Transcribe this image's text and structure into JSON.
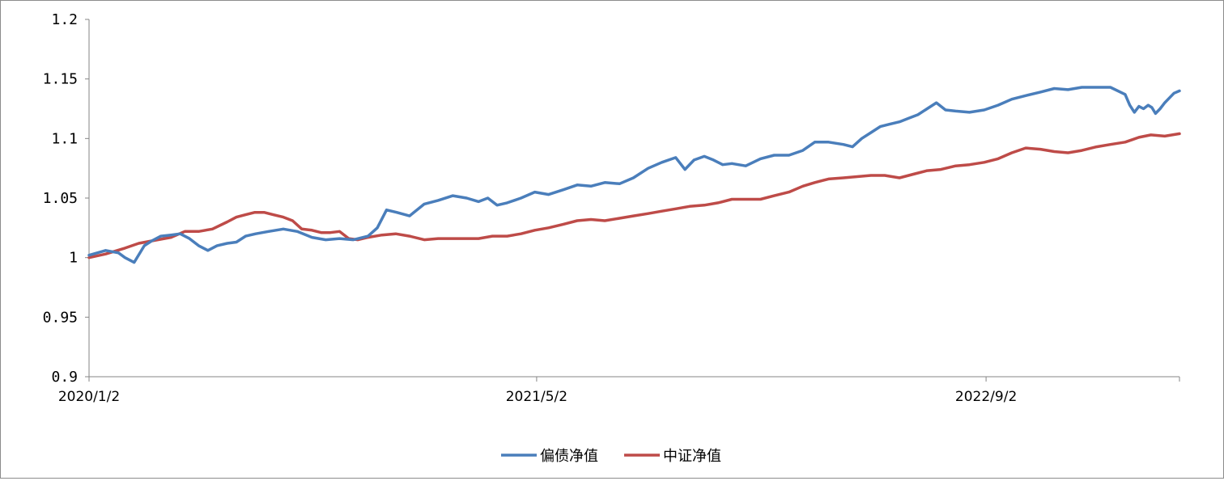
{
  "chart_data": {
    "type": "line",
    "title": "",
    "xlabel": "",
    "ylabel": "",
    "ylim": [
      0.9,
      1.2
    ],
    "yticks": [
      "1.2",
      "1.15",
      "1.1",
      "1.05",
      "1",
      "0.95",
      "0.9"
    ],
    "xticks": [
      "2020/1/2",
      "2021/5/2",
      "2022/9/2"
    ],
    "x_start": "2020/1/2",
    "x_end": "2023/3/31",
    "legend_position": "bottom-center",
    "grid": false,
    "series": [
      {
        "name": "偏债净值",
        "color": "#4a7ebb",
        "points": [
          [
            "2020/1/2",
            1.002
          ],
          [
            "2020/1/20",
            1.006
          ],
          [
            "2020/2/3",
            1.004
          ],
          [
            "2020/2/10",
            1.0
          ],
          [
            "2020/2/20",
            0.996
          ],
          [
            "2020/3/2",
            1.01
          ],
          [
            "2020/3/10",
            1.014
          ],
          [
            "2020/3/20",
            1.018
          ],
          [
            "2020/3/31",
            1.019
          ],
          [
            "2020/4/10",
            1.02
          ],
          [
            "2020/4/20",
            1.016
          ],
          [
            "2020/4/30",
            1.01
          ],
          [
            "2020/5/10",
            1.006
          ],
          [
            "2020/5/20",
            1.01
          ],
          [
            "2020/5/31",
            1.012
          ],
          [
            "2020/6/10",
            1.013
          ],
          [
            "2020/6/20",
            1.018
          ],
          [
            "2020/7/1",
            1.02
          ],
          [
            "2020/7/15",
            1.022
          ],
          [
            "2020/7/31",
            1.024
          ],
          [
            "2020/8/15",
            1.022
          ],
          [
            "2020/8/31",
            1.017
          ],
          [
            "2020/9/15",
            1.015
          ],
          [
            "2020/9/30",
            1.016
          ],
          [
            "2020/10/15",
            1.015
          ],
          [
            "2020/10/31",
            1.018
          ],
          [
            "2020/11/10",
            1.025
          ],
          [
            "2020/11/20",
            1.04
          ],
          [
            "2020/12/1",
            1.038
          ],
          [
            "2020/12/15",
            1.035
          ],
          [
            "2020/12/31",
            1.045
          ],
          [
            "2021/1/15",
            1.048
          ],
          [
            "2021/1/31",
            1.052
          ],
          [
            "2021/2/15",
            1.05
          ],
          [
            "2021/2/28",
            1.047
          ],
          [
            "2021/3/10",
            1.05
          ],
          [
            "2021/3/20",
            1.044
          ],
          [
            "2021/3/31",
            1.046
          ],
          [
            "2021/4/15",
            1.05
          ],
          [
            "2021/4/30",
            1.055
          ],
          [
            "2021/5/15",
            1.053
          ],
          [
            "2021/5/31",
            1.057
          ],
          [
            "2021/6/15",
            1.061
          ],
          [
            "2021/6/30",
            1.06
          ],
          [
            "2021/7/15",
            1.063
          ],
          [
            "2021/7/31",
            1.062
          ],
          [
            "2021/8/15",
            1.067
          ],
          [
            "2021/8/31",
            1.075
          ],
          [
            "2021/9/15",
            1.08
          ],
          [
            "2021/9/30",
            1.084
          ],
          [
            "2021/10/10",
            1.074
          ],
          [
            "2021/10/20",
            1.082
          ],
          [
            "2021/10/31",
            1.085
          ],
          [
            "2021/11/10",
            1.082
          ],
          [
            "2021/11/20",
            1.078
          ],
          [
            "2021/11/30",
            1.079
          ],
          [
            "2021/12/15",
            1.077
          ],
          [
            "2021/12/31",
            1.083
          ],
          [
            "2022/1/15",
            1.086
          ],
          [
            "2022/1/31",
            1.086
          ],
          [
            "2022/2/15",
            1.09
          ],
          [
            "2022/2/28",
            1.097
          ],
          [
            "2022/3/15",
            1.097
          ],
          [
            "2022/3/31",
            1.095
          ],
          [
            "2022/4/10",
            1.093
          ],
          [
            "2022/4/20",
            1.1
          ],
          [
            "2022/4/30",
            1.105
          ],
          [
            "2022/5/10",
            1.11
          ],
          [
            "2022/5/20",
            1.112
          ],
          [
            "2022/5/31",
            1.114
          ],
          [
            "2022/6/10",
            1.117
          ],
          [
            "2022/6/20",
            1.12
          ],
          [
            "2022/6/30",
            1.125
          ],
          [
            "2022/7/10",
            1.13
          ],
          [
            "2022/7/20",
            1.124
          ],
          [
            "2022/7/31",
            1.123
          ],
          [
            "2022/8/15",
            1.122
          ],
          [
            "2022/8/31",
            1.124
          ],
          [
            "2022/9/15",
            1.128
          ],
          [
            "2022/9/30",
            1.133
          ],
          [
            "2022/10/15",
            1.136
          ],
          [
            "2022/10/31",
            1.139
          ],
          [
            "2022/11/15",
            1.142
          ],
          [
            "2022/11/30",
            1.141
          ],
          [
            "2022/12/15",
            1.143
          ],
          [
            "2022/12/31",
            1.143
          ],
          [
            "2023/1/15",
            1.143
          ],
          [
            "2023/1/31",
            1.137
          ],
          [
            "2023/2/5",
            1.128
          ],
          [
            "2023/2/10",
            1.122
          ],
          [
            "2023/2/15",
            1.127
          ],
          [
            "2023/2/20",
            1.125
          ],
          [
            "2023/2/25",
            1.128
          ],
          [
            "2023/3/1",
            1.126
          ],
          [
            "2023/3/5",
            1.121
          ],
          [
            "2023/3/10",
            1.125
          ],
          [
            "2023/3/15",
            1.13
          ],
          [
            "2023/3/20",
            1.134
          ],
          [
            "2023/3/25",
            1.138
          ],
          [
            "2023/3/31",
            1.14
          ]
        ]
      },
      {
        "name": "中证净值",
        "color": "#be4b48",
        "points": [
          [
            "2020/1/2",
            1.0
          ],
          [
            "2020/1/20",
            1.003
          ],
          [
            "2020/2/10",
            1.008
          ],
          [
            "2020/2/25",
            1.012
          ],
          [
            "2020/3/10",
            1.014
          ],
          [
            "2020/3/31",
            1.017
          ],
          [
            "2020/4/15",
            1.022
          ],
          [
            "2020/4/30",
            1.022
          ],
          [
            "2020/5/15",
            1.024
          ],
          [
            "2020/5/31",
            1.03
          ],
          [
            "2020/6/10",
            1.034
          ],
          [
            "2020/6/20",
            1.036
          ],
          [
            "2020/6/30",
            1.038
          ],
          [
            "2020/7/10",
            1.038
          ],
          [
            "2020/7/20",
            1.036
          ],
          [
            "2020/7/31",
            1.034
          ],
          [
            "2020/8/10",
            1.031
          ],
          [
            "2020/8/20",
            1.024
          ],
          [
            "2020/8/31",
            1.023
          ],
          [
            "2020/9/10",
            1.021
          ],
          [
            "2020/9/20",
            1.021
          ],
          [
            "2020/9/30",
            1.022
          ],
          [
            "2020/10/10",
            1.016
          ],
          [
            "2020/10/20",
            1.015
          ],
          [
            "2020/10/31",
            1.017
          ],
          [
            "2020/11/15",
            1.019
          ],
          [
            "2020/11/30",
            1.02
          ],
          [
            "2020/12/15",
            1.018
          ],
          [
            "2020/12/31",
            1.015
          ],
          [
            "2021/1/15",
            1.016
          ],
          [
            "2021/1/31",
            1.016
          ],
          [
            "2021/2/15",
            1.016
          ],
          [
            "2021/2/28",
            1.016
          ],
          [
            "2021/3/15",
            1.018
          ],
          [
            "2021/3/31",
            1.018
          ],
          [
            "2021/4/15",
            1.02
          ],
          [
            "2021/4/30",
            1.023
          ],
          [
            "2021/5/15",
            1.025
          ],
          [
            "2021/5/31",
            1.028
          ],
          [
            "2021/6/15",
            1.031
          ],
          [
            "2021/6/30",
            1.032
          ],
          [
            "2021/7/15",
            1.031
          ],
          [
            "2021/7/31",
            1.033
          ],
          [
            "2021/8/15",
            1.035
          ],
          [
            "2021/8/31",
            1.037
          ],
          [
            "2021/9/15",
            1.039
          ],
          [
            "2021/9/30",
            1.041
          ],
          [
            "2021/10/15",
            1.043
          ],
          [
            "2021/10/31",
            1.044
          ],
          [
            "2021/11/15",
            1.046
          ],
          [
            "2021/11/30",
            1.049
          ],
          [
            "2021/12/15",
            1.049
          ],
          [
            "2021/12/31",
            1.049
          ],
          [
            "2022/1/15",
            1.052
          ],
          [
            "2022/1/31",
            1.055
          ],
          [
            "2022/2/15",
            1.06
          ],
          [
            "2022/2/28",
            1.063
          ],
          [
            "2022/3/15",
            1.066
          ],
          [
            "2022/3/31",
            1.067
          ],
          [
            "2022/4/15",
            1.068
          ],
          [
            "2022/4/30",
            1.069
          ],
          [
            "2022/5/15",
            1.069
          ],
          [
            "2022/5/31",
            1.067
          ],
          [
            "2022/6/15",
            1.07
          ],
          [
            "2022/6/30",
            1.073
          ],
          [
            "2022/7/15",
            1.074
          ],
          [
            "2022/7/31",
            1.077
          ],
          [
            "2022/8/15",
            1.078
          ],
          [
            "2022/8/31",
            1.08
          ],
          [
            "2022/9/15",
            1.083
          ],
          [
            "2022/9/30",
            1.088
          ],
          [
            "2022/10/15",
            1.092
          ],
          [
            "2022/10/31",
            1.091
          ],
          [
            "2022/11/15",
            1.089
          ],
          [
            "2022/11/30",
            1.088
          ],
          [
            "2022/12/15",
            1.09
          ],
          [
            "2022/12/31",
            1.093
          ],
          [
            "2023/1/15",
            1.095
          ],
          [
            "2023/1/31",
            1.097
          ],
          [
            "2023/2/15",
            1.101
          ],
          [
            "2023/2/28",
            1.103
          ],
          [
            "2023/3/15",
            1.102
          ],
          [
            "2023/3/31",
            1.104
          ]
        ]
      }
    ]
  }
}
